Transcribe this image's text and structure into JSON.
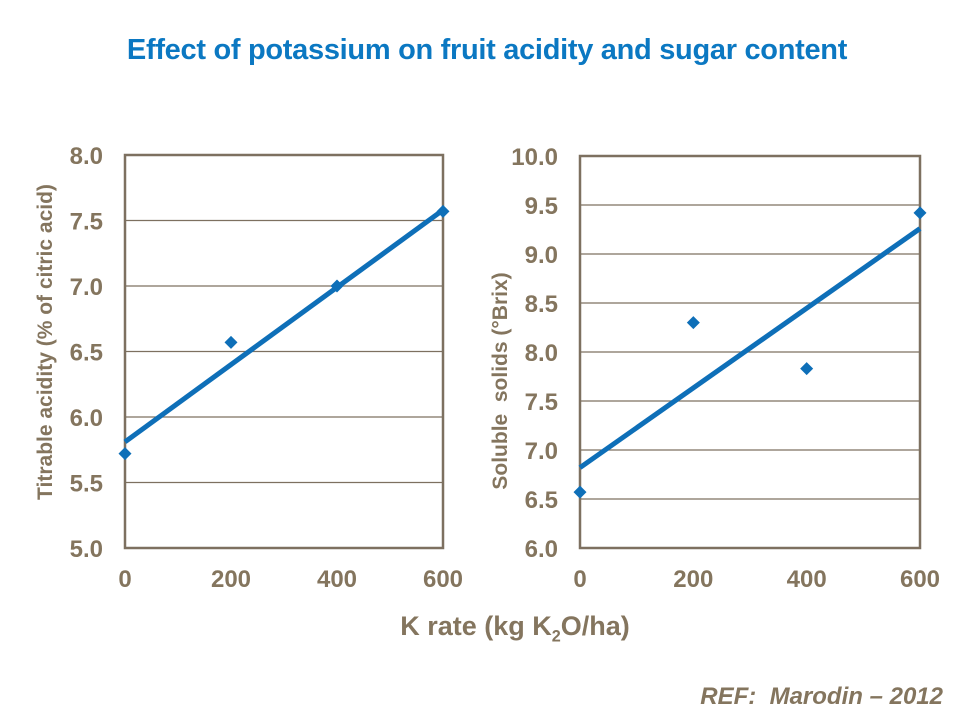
{
  "title": "Effect of potassium on fruit acidity and sugar content",
  "ref": "REF:  Marodin – 2012",
  "xlabel": {
    "pre": "K rate (kg K",
    "sub": "2",
    "post": "O/ha)"
  },
  "colors": {
    "title": "#0b78c2",
    "series": "#0e6fb8",
    "axis_text": "#84755e",
    "grid": "#7d7060"
  },
  "chart_data": [
    {
      "type": "scatter",
      "title": "",
      "ylabel": "Titrable acidity (% of citric acid)",
      "xlabel": "K rate (kg K2O/ha)",
      "xlim": [
        0,
        600
      ],
      "ylim": [
        5.0,
        8.0
      ],
      "xticks": [
        0,
        200,
        400,
        600
      ],
      "yticks": [
        5.0,
        5.5,
        6.0,
        6.5,
        7.0,
        7.5,
        8.0
      ],
      "grid": true,
      "legend": "none",
      "points": [
        [
          0,
          5.72
        ],
        [
          200,
          6.57
        ],
        [
          400,
          7.0
        ],
        [
          600,
          7.57
        ]
      ],
      "trend": {
        "x": [
          0,
          600
        ],
        "y": [
          5.81,
          7.58
        ]
      }
    },
    {
      "type": "scatter",
      "title": "",
      "ylabel": "Soluble  solids (°Brix)",
      "xlabel": "K rate (kg K2O/ha)",
      "xlim": [
        0,
        600
      ],
      "ylim": [
        6.0,
        10.0
      ],
      "xticks": [
        0,
        200,
        400,
        600
      ],
      "yticks": [
        6.0,
        6.5,
        7.0,
        7.5,
        8.0,
        8.5,
        9.0,
        9.5,
        10.0
      ],
      "grid": true,
      "legend": "none",
      "points": [
        [
          0,
          6.57
        ],
        [
          200,
          8.3
        ],
        [
          400,
          7.83
        ],
        [
          600,
          9.42
        ]
      ],
      "trend": {
        "x": [
          0,
          600
        ],
        "y": [
          6.82,
          9.26
        ]
      }
    }
  ]
}
